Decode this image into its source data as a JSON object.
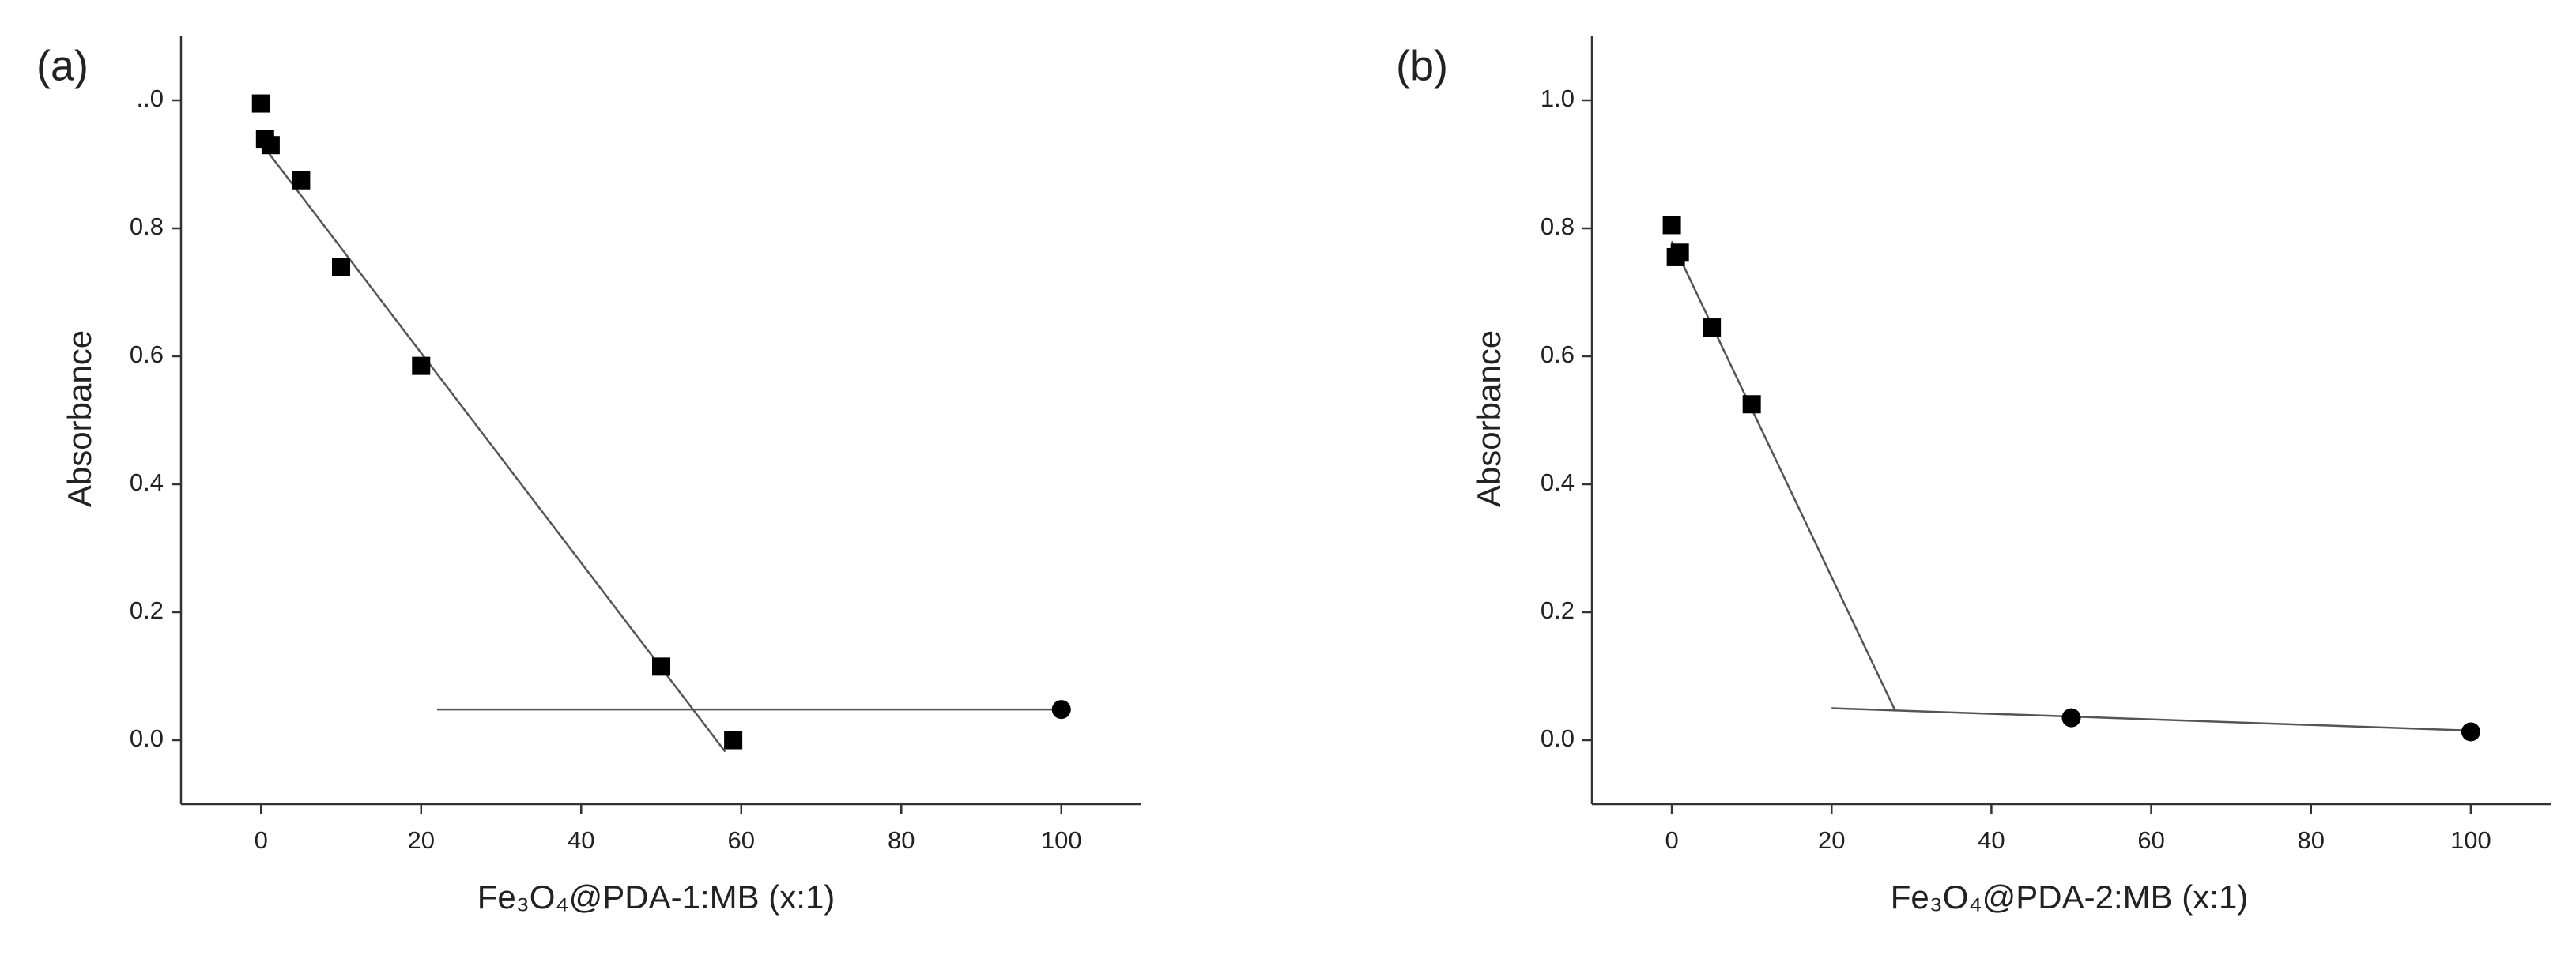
{
  "chart_data": [
    {
      "type": "scatter",
      "label": "(a)",
      "xlabel": "Fe₃O₄@PDA-1:MB (x:1)",
      "ylabel": "Absorbance",
      "xlim": [
        -10,
        110
      ],
      "ylim": [
        -0.1,
        1.1
      ],
      "xticks": [
        0,
        20,
        40,
        60,
        80,
        100
      ],
      "yticks": [
        {
          "value": 0,
          "label": "0.0"
        },
        0.2,
        0.4,
        0.6,
        0.8,
        {
          "value": 1,
          "label": "..0"
        }
      ],
      "color": "#000000",
      "series": [
        {
          "marker": "square",
          "x": [
            0,
            0.5,
            1.2,
            5,
            10,
            20,
            50,
            59
          ],
          "values": [
            0.995,
            0.94,
            0.93,
            0.875,
            0.74,
            0.585,
            0.115,
            0.0
          ]
        },
        {
          "marker": "circle",
          "x": [
            100
          ],
          "values": [
            0.048
          ]
        }
      ],
      "lines": [
        {
          "x": [
            0.2,
            58
          ],
          "values": [
            0.93,
            -0.018
          ]
        },
        {
          "x": [
            22,
            100
          ],
          "values": [
            0.048,
            0.048
          ]
        }
      ]
    },
    {
      "type": "scatter",
      "label": "(b)",
      "xlabel": "Fe₃O₄@PDA-2:MB (x:1)",
      "ylabel": "Absorbance",
      "xlim": [
        -10,
        110
      ],
      "ylim": [
        -0.1,
        1.1
      ],
      "xticks": [
        0,
        20,
        40,
        60,
        80,
        100
      ],
      "yticks": [
        {
          "value": 0,
          "label": "0.0"
        },
        0.2,
        0.4,
        0.6,
        0.8,
        {
          "value": 1,
          "label": "1.0"
        }
      ],
      "color": "#000000",
      "series": [
        {
          "marker": "square",
          "x": [
            0,
            0.5,
            1,
            5,
            10
          ],
          "values": [
            0.805,
            0.755,
            0.762,
            0.645,
            0.525
          ]
        },
        {
          "marker": "circle",
          "x": [
            50,
            100
          ],
          "values": [
            0.035,
            0.013
          ]
        }
      ],
      "lines": [
        {
          "x": [
            0,
            28
          ],
          "values": [
            0.78,
            0.045
          ]
        },
        {
          "x": [
            20,
            100
          ],
          "values": [
            0.05,
            0.015
          ]
        }
      ]
    }
  ]
}
